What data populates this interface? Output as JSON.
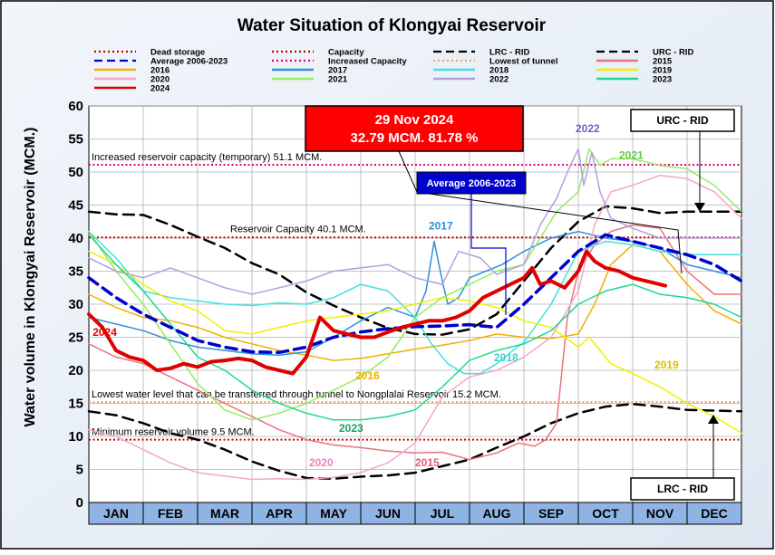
{
  "chart_data": {
    "type": "line",
    "title": "Water Situation of Klongyai Reservoir",
    "ylabel": "Water volume in Klongyai Reservoir (MCM.)",
    "xlabel": "",
    "ylim": [
      0,
      60
    ],
    "yticks": [
      0,
      5,
      10,
      15,
      20,
      25,
      30,
      35,
      40,
      45,
      50,
      55,
      60
    ],
    "categories": [
      "JAN",
      "FEB",
      "MAR",
      "APR",
      "MAY",
      "JUN",
      "JUL",
      "AUG",
      "SEP",
      "OCT",
      "NOV",
      "DEC"
    ],
    "grid": true,
    "legend_position": "top",
    "legend": [
      {
        "label": "Dead storage",
        "color": "#c00000",
        "style": "dotted"
      },
      {
        "label": "Capacity",
        "color": "#c00000",
        "style": "dotted"
      },
      {
        "label": "LRC - RID",
        "color": "#000000",
        "style": "dashed"
      },
      {
        "label": "URC - RID",
        "color": "#000000",
        "style": "dashed"
      },
      {
        "label": "Average 2006-2023",
        "color": "#0000cc",
        "style": "dashed"
      },
      {
        "label": "Increased Capacity",
        "color": "#e0007a",
        "style": "dotted"
      },
      {
        "label": "Lowest of tunnel",
        "color": "#f4a460",
        "style": "dotted"
      },
      {
        "label": "2015",
        "color": "#e8747c",
        "style": "solid"
      },
      {
        "label": "2016",
        "color": "#f0b000",
        "style": "solid"
      },
      {
        "label": "2017",
        "color": "#2f8fd8",
        "style": "solid"
      },
      {
        "label": "2018",
        "color": "#40e0e0",
        "style": "solid"
      },
      {
        "label": "2019",
        "color": "#f0f000",
        "style": "solid"
      },
      {
        "label": "2020",
        "color": "#f4a6c8",
        "style": "solid"
      },
      {
        "label": "2021",
        "color": "#90ee60",
        "style": "solid"
      },
      {
        "label": "2022",
        "color": "#b0a0e0",
        "style": "solid"
      },
      {
        "label": "2023",
        "color": "#20d890",
        "style": "solid"
      },
      {
        "label": "2024",
        "color": "#e00000",
        "style": "solid"
      }
    ],
    "reference_lines": [
      {
        "name": "Dead storage",
        "y": 9.5,
        "color": "#c00000",
        "label": "Minimum reservoir volume 9.5 MCM."
      },
      {
        "name": "Capacity",
        "y": 40.1,
        "color": "#c00000",
        "label": "Reservoir Capacity 40.1 MCM."
      },
      {
        "name": "Increased Capacity",
        "y": 51.1,
        "color": "#e0007a",
        "label": "Increased reservoir capacity (temporary) 51.1 MCM."
      },
      {
        "name": "Lowest of tunnel",
        "y": 15.2,
        "color": "#f4a460",
        "label": "Lowest water level that can be transferred through tunnel to Nongplalai Reservoir 15.2 MCM."
      }
    ],
    "series": [
      {
        "name": "LRC - RID",
        "color": "#000000",
        "style": "dashed",
        "width": 2.5,
        "x": [
          0,
          0.5,
          1,
          1.5,
          2,
          2.5,
          3,
          3.5,
          4,
          4.5,
          5,
          5.5,
          6,
          6.5,
          7,
          7.5,
          8,
          8.5,
          9,
          9.5,
          10,
          10.5,
          11,
          11.5,
          12
        ],
        "values": [
          13.8,
          13.2,
          12,
          10.5,
          9.5,
          8,
          6.2,
          4.8,
          3.7,
          3.6,
          3.9,
          4.1,
          4.5,
          5.5,
          6.5,
          8.3,
          10,
          12,
          13.5,
          14.5,
          14.9,
          14.5,
          14,
          13.9,
          13.8
        ]
      },
      {
        "name": "URC - RID",
        "color": "#000000",
        "style": "dashed",
        "width": 2.5,
        "x": [
          0,
          0.5,
          1,
          1.5,
          2,
          2.5,
          3,
          3.5,
          4,
          4.5,
          5,
          5.5,
          6,
          6.5,
          7,
          7.5,
          8,
          8.5,
          9,
          9.5,
          10,
          10.5,
          11,
          11.5,
          12
        ],
        "values": [
          44,
          43.6,
          43.5,
          42,
          40.2,
          38.5,
          36.2,
          34.5,
          31.8,
          29.8,
          28,
          26.4,
          25.5,
          25.4,
          26.2,
          28.5,
          33.5,
          38.5,
          42.5,
          44.8,
          44.5,
          43.8,
          44,
          44,
          44
        ]
      },
      {
        "name": "2015",
        "color": "#e8747c",
        "width": 1.5,
        "x": [
          0,
          0.5,
          1,
          1.5,
          2,
          2.5,
          3,
          3.5,
          4,
          4.5,
          5,
          5.5,
          6,
          6.5,
          7,
          7.5,
          7.9,
          8.2,
          8.4,
          8.6,
          8.8,
          9,
          9.3,
          9.6,
          10,
          10.5,
          11,
          11.5,
          12
        ],
        "values": [
          24,
          22,
          21,
          19,
          17,
          15,
          13,
          11,
          9.5,
          8.7,
          8.3,
          7.8,
          7.5,
          7.6,
          6.5,
          7.5,
          9,
          8.5,
          9.5,
          12,
          28,
          35,
          39,
          41,
          42,
          41.5,
          35,
          31.5,
          31.5
        ]
      },
      {
        "name": "2016",
        "color": "#f0b000",
        "width": 1.5,
        "x": [
          0,
          0.5,
          1,
          1.5,
          2,
          2.5,
          3,
          3.5,
          4,
          4.5,
          5,
          5.5,
          6,
          6.5,
          7,
          7.5,
          8,
          8.5,
          9,
          9.3,
          9.6,
          10,
          10.5,
          11,
          11.5,
          12
        ],
        "values": [
          31.5,
          29.5,
          28,
          27.5,
          26.5,
          25,
          24,
          23,
          22.3,
          21.5,
          21.8,
          22.5,
          23.2,
          23.8,
          24.5,
          25.5,
          25,
          24.8,
          25.5,
          30,
          36,
          39,
          38,
          33,
          29,
          27
        ]
      },
      {
        "name": "2017",
        "color": "#2f8fd8",
        "width": 1.5,
        "x": [
          0,
          0.5,
          1,
          1.5,
          2,
          2.5,
          3,
          3.5,
          4,
          4.5,
          5,
          5.5,
          6,
          6.2,
          6.35,
          6.5,
          6.6,
          6.8,
          7,
          7.3,
          7.6,
          8,
          8.5,
          9,
          9.5,
          10,
          10.5,
          11,
          11.5,
          12
        ],
        "values": [
          28,
          27,
          26,
          24.5,
          23.5,
          23,
          22.5,
          22.3,
          22.8,
          25,
          27.5,
          29.5,
          28,
          32,
          39.5,
          33.5,
          30,
          31,
          34,
          35,
          36,
          38,
          40,
          41,
          40,
          39.5,
          38.5,
          36,
          35,
          34
        ]
      },
      {
        "name": "2018",
        "color": "#40e0e0",
        "width": 1.5,
        "x": [
          0,
          0.5,
          1,
          1.5,
          2,
          2.5,
          3,
          3.5,
          4,
          4.5,
          5,
          5.5,
          6,
          6.3,
          6.6,
          6.9,
          7.2,
          7.5,
          7.8,
          8,
          8.5,
          9,
          9.5,
          10,
          10.5,
          11,
          11.5,
          12
        ],
        "values": [
          41,
          37,
          32,
          31,
          30.5,
          30,
          29.8,
          30.2,
          30,
          31,
          33,
          32,
          28,
          24,
          21,
          19.5,
          19.5,
          21,
          23,
          24.2,
          30,
          38,
          39.5,
          39,
          38,
          37.5,
          37.5,
          37.5
        ]
      },
      {
        "name": "2019",
        "color": "#f0f000",
        "width": 1.5,
        "x": [
          0,
          0.5,
          1,
          1.5,
          2,
          2.5,
          3,
          3.5,
          4,
          4.5,
          5,
          5.5,
          6,
          6.5,
          7,
          7.5,
          8,
          8.5,
          9,
          9.2,
          9.4,
          9.6,
          10,
          10.5,
          11,
          11.5,
          12
        ],
        "values": [
          38,
          36,
          33,
          30.5,
          29,
          26,
          25.5,
          26.5,
          27.5,
          28,
          28.5,
          29,
          30,
          31,
          30.5,
          29.5,
          27.5,
          26.5,
          23.5,
          25,
          23,
          21,
          19.5,
          17.5,
          15,
          13,
          10.5
        ]
      },
      {
        "name": "2020",
        "color": "#f4a6c8",
        "width": 1.5,
        "x": [
          0,
          0.5,
          1,
          1.5,
          2,
          2.5,
          3,
          3.5,
          4,
          4.5,
          5,
          5.5,
          6,
          6.5,
          7,
          7.5,
          8,
          8.5,
          9,
          9.3,
          9.6,
          10,
          10.5,
          11,
          11.5,
          12
        ],
        "values": [
          11,
          10,
          8,
          6,
          4.5,
          4,
          3.5,
          3.6,
          3.5,
          3.8,
          4.5,
          6,
          9,
          16,
          19,
          20,
          22,
          25,
          32,
          42,
          47,
          48,
          49.5,
          49,
          47,
          43
        ]
      },
      {
        "name": "2021",
        "color": "#90ee60",
        "width": 1.5,
        "x": [
          0,
          0.5,
          1,
          1.5,
          2,
          2.5,
          3,
          3.5,
          4,
          4.5,
          5,
          5.5,
          6,
          6.5,
          7,
          7.5,
          8,
          8.3,
          8.6,
          9,
          9.2,
          9.4,
          9.6,
          10,
          10.5,
          11,
          11.5,
          12
        ],
        "values": [
          41,
          35,
          30,
          24,
          18,
          14,
          12.5,
          13.5,
          15,
          17,
          19,
          22,
          28,
          31,
          33,
          35,
          36,
          40,
          44,
          47,
          53.5,
          51,
          52,
          52,
          51,
          50.5,
          48,
          44
        ]
      },
      {
        "name": "2022",
        "color": "#b0a0e0",
        "width": 1.5,
        "x": [
          0,
          0.5,
          1,
          1.5,
          2,
          2.5,
          3,
          3.5,
          4,
          4.5,
          5,
          5.5,
          6,
          6.5,
          6.8,
          7.2,
          7.5,
          8,
          8.3,
          8.6,
          8.8,
          9,
          9.1,
          9.25,
          9.4,
          9.6,
          10,
          10.5,
          11,
          11.5,
          12
        ],
        "values": [
          37,
          35,
          34,
          35.5,
          34,
          32.5,
          31.5,
          32.5,
          33.5,
          35,
          35.5,
          36,
          34,
          33,
          38,
          37,
          34.5,
          36,
          42,
          46,
          50,
          53.5,
          48,
          53,
          47,
          43,
          41.5,
          40,
          40,
          40,
          40
        ]
      },
      {
        "name": "2023",
        "color": "#20d890",
        "width": 1.5,
        "x": [
          0,
          0.5,
          1,
          1.5,
          2,
          2.5,
          3,
          3.5,
          4,
          4.5,
          5,
          5.5,
          6,
          6.5,
          7,
          7.5,
          8,
          8.5,
          9,
          9.5,
          10,
          10.5,
          11,
          11.5,
          12
        ],
        "values": [
          40.5,
          36,
          32,
          27,
          22,
          20,
          17,
          15,
          13.5,
          12.5,
          12.5,
          13,
          14,
          17.5,
          21.5,
          23,
          24,
          26,
          30,
          32,
          33,
          31.5,
          31,
          30,
          28
        ]
      },
      {
        "name": "Average 2006-2023",
        "color": "#0000cc",
        "style": "dashed",
        "width": 3.5,
        "x": [
          0,
          0.5,
          1,
          1.5,
          2,
          2.5,
          3,
          3.5,
          4,
          4.5,
          5,
          5.5,
          6,
          6.5,
          7,
          7.5,
          8,
          8.5,
          9,
          9.5,
          10,
          10.5,
          11,
          11.5,
          12
        ],
        "values": [
          34,
          31,
          28.5,
          26.5,
          24.5,
          23.5,
          22.8,
          22.7,
          23.5,
          25,
          25.8,
          26.3,
          26.6,
          26.7,
          26.9,
          26.5,
          30,
          34,
          38,
          40.5,
          39.5,
          38.5,
          37.5,
          36,
          33.5
        ]
      },
      {
        "name": "2024",
        "color": "#e00000",
        "width": 4,
        "x": [
          0,
          0.25,
          0.5,
          0.75,
          1,
          1.25,
          1.5,
          1.75,
          2,
          2.25,
          2.5,
          2.75,
          3,
          3.25,
          3.5,
          3.75,
          4,
          4.25,
          4.5,
          4.75,
          5,
          5.25,
          5.5,
          5.75,
          6,
          6.25,
          6.5,
          6.75,
          7,
          7.25,
          7.5,
          7.75,
          8,
          8.15,
          8.3,
          8.5,
          8.75,
          9,
          9.15,
          9.3,
          9.5,
          9.75,
          10,
          10.25,
          10.5,
          10.6
        ],
        "values": [
          28.5,
          26.5,
          23,
          22,
          21.5,
          20,
          20.3,
          21,
          20.5,
          21.3,
          21.5,
          21.8,
          21.5,
          20.5,
          20,
          19.5,
          22,
          28,
          26,
          25.5,
          25,
          25,
          25.8,
          26.5,
          27,
          27.5,
          27.5,
          28,
          29,
          31,
          32,
          33,
          34,
          35.5,
          33,
          33.5,
          32.5,
          35,
          38,
          36.5,
          35.5,
          35,
          34,
          33.5,
          33,
          32.79
        ]
      }
    ],
    "annotations": [
      {
        "text": "2024",
        "color": "#e00000"
      },
      {
        "text": "2016",
        "color": "#f0b000"
      },
      {
        "text": "2017",
        "color": "#2f8fd8"
      },
      {
        "text": "2018",
        "color": "#40d0d0"
      },
      {
        "text": "2019",
        "color": "#d8c000"
      },
      {
        "text": "2020",
        "color": "#f080c0"
      },
      {
        "text": "2015",
        "color": "#e06070"
      },
      {
        "text": "2021",
        "color": "#60cc40"
      },
      {
        "text": "2022",
        "color": "#7060c0"
      },
      {
        "text": "2023",
        "color": "#10a060"
      }
    ],
    "callouts": {
      "latest": {
        "line1": "29 Nov 2024",
        "line2": "32.79 MCM. 81.78 %",
        "bg": "#ff0000"
      },
      "average": {
        "text": "Average 2006-2023",
        "bg": "#0000cc"
      },
      "urc": {
        "text": "URC - RID"
      },
      "lrc": {
        "text": "LRC - RID"
      }
    }
  }
}
